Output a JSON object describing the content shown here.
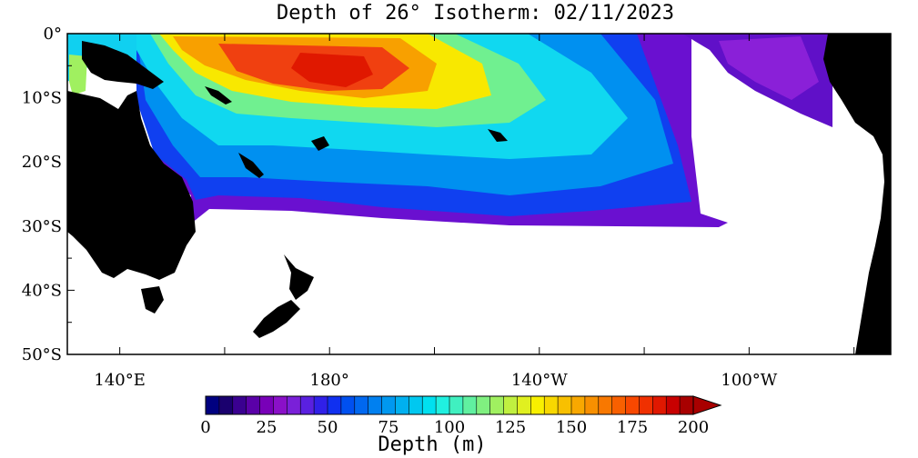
{
  "title": "Depth of 26° Isotherm: 02/11/2023",
  "axes": {
    "y_ticks": [
      "0°",
      "10°S",
      "20°S",
      "30°S",
      "40°S",
      "50°S"
    ],
    "y_values": [
      0,
      -10,
      -20,
      -30,
      -40,
      -50
    ],
    "x_ticks": [
      "140°E",
      "180°",
      "140°W",
      "100°W"
    ],
    "x_values": [
      140,
      180,
      220,
      260
    ]
  },
  "extent": {
    "lon_min": 130,
    "lon_max": 287,
    "lat_min": -50,
    "lat_max": 0
  },
  "colorbar": {
    "label": "Depth (m)",
    "ticks": [
      "0",
      "25",
      "50",
      "75",
      "100",
      "125",
      "150",
      "175",
      "200"
    ],
    "values": [
      0,
      25,
      50,
      75,
      100,
      125,
      150,
      175,
      200
    ],
    "extend": "max",
    "colors": [
      "#000080",
      "#1a006e",
      "#3a0090",
      "#5a00a8",
      "#7800b8",
      "#8a10c8",
      "#7a20d8",
      "#5a20e0",
      "#3020e8",
      "#1030f0",
      "#0050f0",
      "#0068f0",
      "#0080f0",
      "#0098f0",
      "#00b0f0",
      "#00c8f0",
      "#00e0f0",
      "#20f0e0",
      "#40f0c0",
      "#60f0a0",
      "#80f080",
      "#a0f060",
      "#c0f040",
      "#e0f020",
      "#f8f000",
      "#f8d800",
      "#f8c000",
      "#f8a800",
      "#f89000",
      "#f87800",
      "#f86000",
      "#f84800",
      "#f03000",
      "#e01800",
      "#c80000",
      "#a80000"
    ]
  },
  "colors": {
    "land": "#000000",
    "ocean_masked": "#ffffff",
    "frame": "#000000"
  }
}
